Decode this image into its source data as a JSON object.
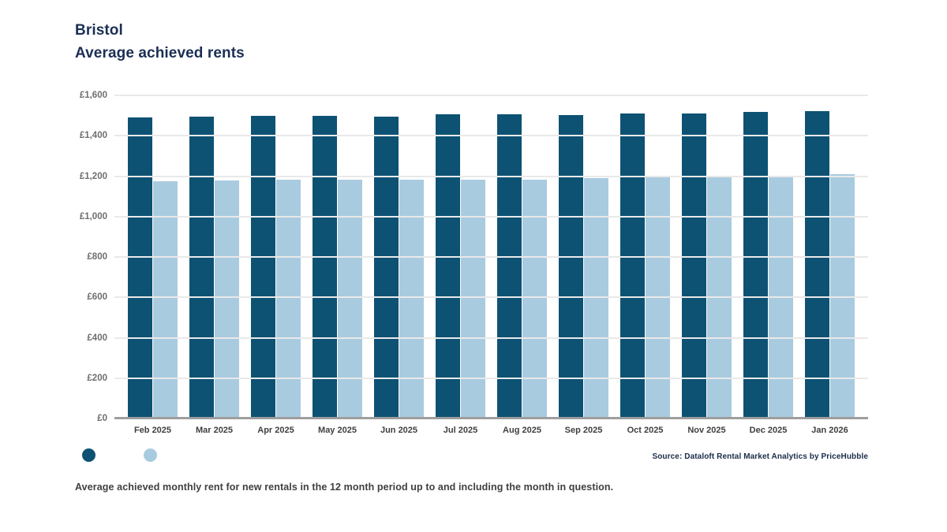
{
  "page": {
    "title": "Bristol",
    "subtitle": "Average achieved rents",
    "source": "Source: Dataloft Rental Market Analytics by PriceHubble",
    "footnote": "Average achieved monthly rent for new rentals in the 12 month period up to and including the month in question."
  },
  "colors": {
    "title_navy": "#1b2f54",
    "dark_bar": "#0d5273",
    "light_bar": "#a9cbdf",
    "gridline": "#e9e9e9",
    "axis_line": "#9e9e9e",
    "y_label_gray": "#6e6e6e",
    "x_label_gray": "#3f3f3f"
  },
  "chart_data": {
    "type": "bar",
    "title": "Bristol — Average achieved rents",
    "categories": [
      "Feb 2025",
      "Mar 2025",
      "Apr 2025",
      "May 2025",
      "Jun 2025",
      "Jul 2025",
      "Aug 2025",
      "Sep 2025",
      "Oct 2025",
      "Nov 2025",
      "Dec 2025",
      "Jan 2026"
    ],
    "series": [
      {
        "name": "series-dark-blue",
        "color": "#0d5273",
        "values": [
          1490,
          1494,
          1498,
          1497,
          1496,
          1508,
          1505,
          1502,
          1511,
          1512,
          1517,
          1523
        ]
      },
      {
        "name": "series-light-blue",
        "color": "#a9cbdf",
        "values": [
          1173,
          1178,
          1181,
          1184,
          1182,
          1184,
          1184,
          1192,
          1193,
          1197,
          1198,
          1208
        ]
      }
    ],
    "xlabel": "",
    "ylabel": "",
    "ylim": [
      0,
      1600
    ],
    "yticks": [
      {
        "value": 1600,
        "label": "£1,600"
      },
      {
        "value": 1400,
        "label": "£1,400"
      },
      {
        "value": 1200,
        "label": "£1,200"
      },
      {
        "value": 1000,
        "label": "£1,000"
      },
      {
        "value": 800,
        "label": "£800"
      },
      {
        "value": 600,
        "label": "£600"
      },
      {
        "value": 400,
        "label": "£400"
      },
      {
        "value": 200,
        "label": "£200"
      },
      {
        "value": 0,
        "label": "£0"
      }
    ],
    "grid": true,
    "legend_position": "bottom-left"
  }
}
